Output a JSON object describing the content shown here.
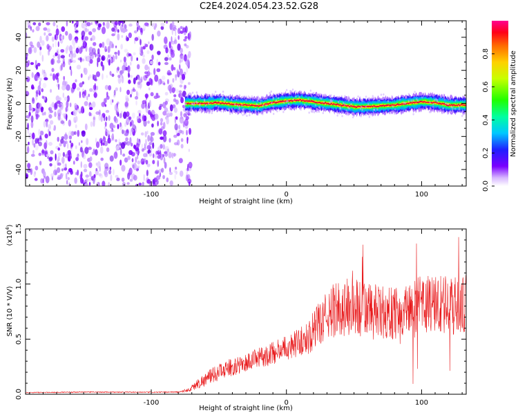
{
  "title": "C2E4.2024.054.23.52.G28",
  "colors": {
    "speckle": "#7a00ff",
    "trace_core": "#e8003a",
    "snr_line": "#e8191b"
  },
  "chart_data": [
    {
      "type": "heatmap",
      "xlabel": "Height of straight line (km)",
      "ylabel": "Frequency (Hz)",
      "xlim": [
        -193,
        133
      ],
      "ylim": [
        -50,
        50
      ],
      "x_ticks": [
        -100,
        0,
        100
      ],
      "y_ticks": [
        -40,
        -20,
        0,
        20,
        40
      ],
      "colorbar": {
        "label": "Normalized spectral amplitude",
        "range": [
          0,
          1
        ],
        "ticks": [
          "0.0",
          "0.2",
          "0.4",
          "0.6",
          "0.8"
        ]
      },
      "noise_region_x": [
        -193,
        -75
      ],
      "trace": {
        "x": [
          -75,
          -60,
          -50,
          -40,
          -30,
          -20,
          -10,
          0,
          10,
          20,
          30,
          40,
          50,
          60,
          70,
          80,
          90,
          100,
          110,
          120,
          133
        ],
        "frequency_hz": [
          0,
          0,
          0.5,
          -0.5,
          -1,
          -1.5,
          0.5,
          1.5,
          2,
          1,
          0,
          -1,
          -2,
          -2,
          -1.5,
          -1,
          0,
          1,
          0.5,
          -1,
          -1
        ]
      }
    },
    {
      "type": "line",
      "xlabel": "Height of straight line (km)",
      "ylabel": "SNR (10 * V/V)",
      "y_multiplier": "(x10",
      "y_multiplier_exp": "4",
      "xlim": [
        -193,
        133
      ],
      "ylim": [
        0,
        15000
      ],
      "x_ticks": [
        -100,
        0,
        100
      ],
      "y_ticks": [
        0,
        5000,
        10000,
        15000
      ],
      "y_tick_labels": [
        "0.0",
        "0.5",
        "1.0",
        "1.5"
      ],
      "series": [
        {
          "x": [
            -193,
            -150,
            -100,
            -80,
            -72,
            -65,
            -55,
            -45,
            -35,
            -25,
            -15,
            -5,
            5,
            15,
            25,
            35,
            45,
            55,
            65,
            75,
            85,
            95,
            105,
            115,
            125,
            133
          ],
          "mean": [
            150,
            200,
            180,
            200,
            400,
            1000,
            1700,
            2300,
            2600,
            3100,
            3500,
            4000,
            4500,
            5000,
            6500,
            7600,
            7900,
            7800,
            7400,
            7300,
            7600,
            7800,
            8200,
            8100,
            8000,
            8100
          ],
          "spread": [
            40,
            50,
            50,
            60,
            200,
            500,
            700,
            800,
            800,
            900,
            1000,
            1100,
            1200,
            1500,
            2000,
            2500,
            2800,
            2800,
            2600,
            2400,
            2500,
            2700,
            2800,
            2800,
            2700,
            2700
          ]
        }
      ]
    }
  ]
}
